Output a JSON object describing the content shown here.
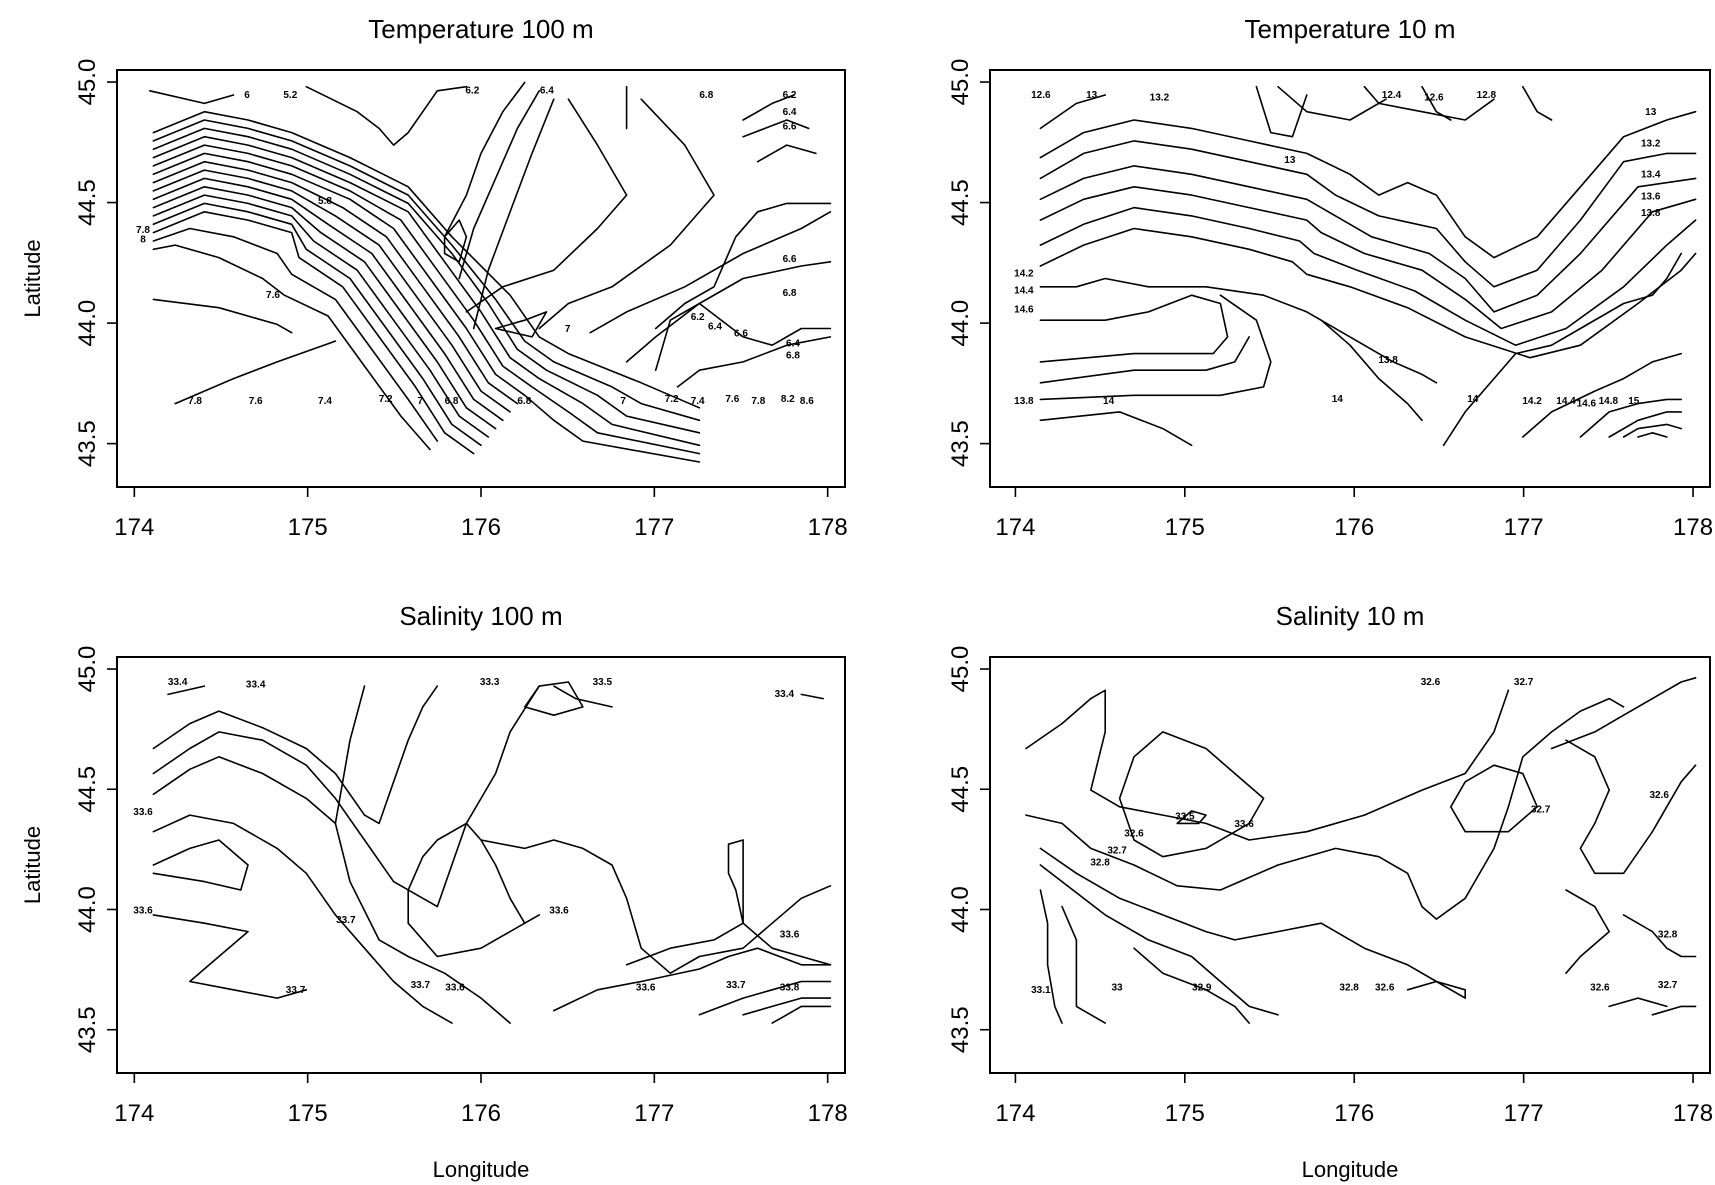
{
  "chart_data": [
    {
      "type": "contour",
      "title": "Temperature 100 m",
      "xlabel": "",
      "ylabel": "Latitude",
      "xlim": [
        173.9,
        178.1
      ],
      "ylim": [
        43.32,
        45.05
      ],
      "xticks": [
        "174",
        "175",
        "176",
        "177",
        "178"
      ],
      "yticks": [
        "43.5",
        "44.0",
        "44.5",
        "45.0"
      ],
      "contour_labels": [
        {
          "text": "6",
          "x": 174.65,
          "y": 44.95
        },
        {
          "text": "5.2",
          "x": 174.9,
          "y": 44.95
        },
        {
          "text": "6.2",
          "x": 175.95,
          "y": 44.97
        },
        {
          "text": "6.4",
          "x": 176.38,
          "y": 44.97
        },
        {
          "text": "6.8",
          "x": 177.3,
          "y": 44.95
        },
        {
          "text": "6.2",
          "x": 177.78,
          "y": 44.95
        },
        {
          "text": "6.4",
          "x": 177.78,
          "y": 44.88
        },
        {
          "text": "6.6",
          "x": 177.78,
          "y": 44.82
        },
        {
          "text": "5.8",
          "x": 175.1,
          "y": 44.51
        },
        {
          "text": "7.8",
          "x": 174.05,
          "y": 44.39
        },
        {
          "text": "8",
          "x": 174.05,
          "y": 44.35
        },
        {
          "text": "7.6",
          "x": 174.8,
          "y": 44.12
        },
        {
          "text": "6.6",
          "x": 177.78,
          "y": 44.27
        },
        {
          "text": "6.8",
          "x": 177.78,
          "y": 44.13
        },
        {
          "text": "7",
          "x": 176.5,
          "y": 43.98
        },
        {
          "text": "6.2",
          "x": 177.25,
          "y": 44.03
        },
        {
          "text": "6.4",
          "x": 177.35,
          "y": 43.99
        },
        {
          "text": "6.6",
          "x": 177.5,
          "y": 43.96
        },
        {
          "text": "6.4",
          "x": 177.8,
          "y": 43.92
        },
        {
          "text": "6.8",
          "x": 177.8,
          "y": 43.87
        },
        {
          "text": "7.8",
          "x": 174.35,
          "y": 43.68
        },
        {
          "text": "7.6",
          "x": 174.7,
          "y": 43.68
        },
        {
          "text": "7.4",
          "x": 175.1,
          "y": 43.68
        },
        {
          "text": "7.2",
          "x": 175.45,
          "y": 43.69
        },
        {
          "text": "7",
          "x": 175.65,
          "y": 43.68
        },
        {
          "text": "6.8",
          "x": 175.83,
          "y": 43.68
        },
        {
          "text": "6.8",
          "x": 176.25,
          "y": 43.68
        },
        {
          "text": "7",
          "x": 176.82,
          "y": 43.68
        },
        {
          "text": "7.2",
          "x": 177.1,
          "y": 43.69
        },
        {
          "text": "7.4",
          "x": 177.25,
          "y": 43.68
        },
        {
          "text": "7.6",
          "x": 177.45,
          "y": 43.69
        },
        {
          "text": "7.8",
          "x": 177.6,
          "y": 43.68
        },
        {
          "text": "8.2",
          "x": 177.77,
          "y": 43.69
        },
        {
          "text": "8.6",
          "x": 177.88,
          "y": 43.68
        }
      ]
    },
    {
      "type": "contour",
      "title": "Temperature 10 m",
      "xlabel": "",
      "ylabel": "",
      "xlim": [
        173.85,
        178.1
      ],
      "ylim": [
        43.32,
        45.05
      ],
      "xticks": [
        "174",
        "175",
        "176",
        "177",
        "178"
      ],
      "yticks": [
        "43.5",
        "44.0",
        "44.5",
        "45.0"
      ],
      "contour_labels": [
        {
          "text": "12.6",
          "x": 174.15,
          "y": 44.95
        },
        {
          "text": "13",
          "x": 174.45,
          "y": 44.95
        },
        {
          "text": "13.2",
          "x": 174.85,
          "y": 44.94
        },
        {
          "text": "13",
          "x": 175.62,
          "y": 44.68
        },
        {
          "text": "12.4",
          "x": 176.22,
          "y": 44.95
        },
        {
          "text": "12.6",
          "x": 176.47,
          "y": 44.94
        },
        {
          "text": "12.8",
          "x": 176.78,
          "y": 44.95
        },
        {
          "text": "13",
          "x": 177.75,
          "y": 44.88
        },
        {
          "text": "13.2",
          "x": 177.75,
          "y": 44.75
        },
        {
          "text": "13.4",
          "x": 177.75,
          "y": 44.62
        },
        {
          "text": "13.6",
          "x": 177.75,
          "y": 44.53
        },
        {
          "text": "13.8",
          "x": 177.75,
          "y": 44.46
        },
        {
          "text": "14.2",
          "x": 174.05,
          "y": 44.21
        },
        {
          "text": "14.4",
          "x": 174.05,
          "y": 44.14
        },
        {
          "text": "14.6",
          "x": 174.05,
          "y": 44.06
        },
        {
          "text": "13.8",
          "x": 176.2,
          "y": 43.85
        },
        {
          "text": "13.8",
          "x": 174.05,
          "y": 43.68
        },
        {
          "text": "14",
          "x": 174.55,
          "y": 43.68
        },
        {
          "text": "14",
          "x": 175.9,
          "y": 43.69
        },
        {
          "text": "14",
          "x": 176.7,
          "y": 43.69
        },
        {
          "text": "14.2",
          "x": 177.05,
          "y": 43.68
        },
        {
          "text": "14.4",
          "x": 177.25,
          "y": 43.68
        },
        {
          "text": "14.6",
          "x": 177.37,
          "y": 43.67
        },
        {
          "text": "14.8",
          "x": 177.5,
          "y": 43.68
        },
        {
          "text": "15",
          "x": 177.65,
          "y": 43.68
        }
      ]
    },
    {
      "type": "contour",
      "title": "Salinity 100 m",
      "xlabel": "Longitude",
      "ylabel": "Latitude",
      "xlim": [
        173.9,
        178.1
      ],
      "ylim": [
        43.32,
        45.05
      ],
      "xticks": [
        "174",
        "175",
        "176",
        "177",
        "178"
      ],
      "yticks": [
        "43.5",
        "44.0",
        "44.5",
        "45.0"
      ],
      "contour_labels": [
        {
          "text": "33.4",
          "x": 174.25,
          "y": 44.95
        },
        {
          "text": "33.4",
          "x": 174.7,
          "y": 44.94
        },
        {
          "text": "33.3",
          "x": 176.05,
          "y": 44.95
        },
        {
          "text": "33.5",
          "x": 176.7,
          "y": 44.95
        },
        {
          "text": "33.4",
          "x": 177.75,
          "y": 44.9
        },
        {
          "text": "33.6",
          "x": 174.05,
          "y": 44.41
        },
        {
          "text": "33.6",
          "x": 174.05,
          "y": 44.0
        },
        {
          "text": "33.7",
          "x": 175.22,
          "y": 43.96
        },
        {
          "text": "33.6",
          "x": 176.45,
          "y": 44.0
        },
        {
          "text": "33.6",
          "x": 177.78,
          "y": 43.9
        },
        {
          "text": "33.7",
          "x": 174.93,
          "y": 43.67
        },
        {
          "text": "33.7",
          "x": 175.65,
          "y": 43.69
        },
        {
          "text": "33.6",
          "x": 175.85,
          "y": 43.68
        },
        {
          "text": "33.6",
          "x": 176.95,
          "y": 43.68
        },
        {
          "text": "33.7",
          "x": 177.47,
          "y": 43.69
        },
        {
          "text": "33.8",
          "x": 177.78,
          "y": 43.68
        }
      ]
    },
    {
      "type": "contour",
      "title": "Salinity 10 m",
      "xlabel": "Longitude",
      "ylabel": "",
      "xlim": [
        173.85,
        178.1
      ],
      "ylim": [
        43.32,
        45.05
      ],
      "xticks": [
        "174",
        "175",
        "176",
        "177",
        "178"
      ],
      "yticks": [
        "43.5",
        "44.0",
        "44.5",
        "45.0"
      ],
      "contour_labels": [
        {
          "text": "32.6",
          "x": 176.45,
          "y": 44.95
        },
        {
          "text": "32.7",
          "x": 177.0,
          "y": 44.95
        },
        {
          "text": "32.6",
          "x": 177.8,
          "y": 44.48
        },
        {
          "text": "33.5",
          "x": 175.0,
          "y": 44.39
        },
        {
          "text": "33.6",
          "x": 175.35,
          "y": 44.36
        },
        {
          "text": "32.7",
          "x": 177.1,
          "y": 44.42
        },
        {
          "text": "32.6",
          "x": 174.7,
          "y": 44.32
        },
        {
          "text": "32.7",
          "x": 174.6,
          "y": 44.25
        },
        {
          "text": "32.8",
          "x": 174.5,
          "y": 44.2
        },
        {
          "text": "32.8",
          "x": 177.85,
          "y": 43.9
        },
        {
          "text": "33.1",
          "x": 174.15,
          "y": 43.67
        },
        {
          "text": "33",
          "x": 174.6,
          "y": 43.68
        },
        {
          "text": "32.9",
          "x": 175.1,
          "y": 43.68
        },
        {
          "text": "32.8",
          "x": 175.97,
          "y": 43.68
        },
        {
          "text": "32.6",
          "x": 176.18,
          "y": 43.68
        },
        {
          "text": "32.6",
          "x": 177.45,
          "y": 43.68
        },
        {
          "text": "32.7",
          "x": 177.85,
          "y": 43.69
        }
      ]
    }
  ]
}
